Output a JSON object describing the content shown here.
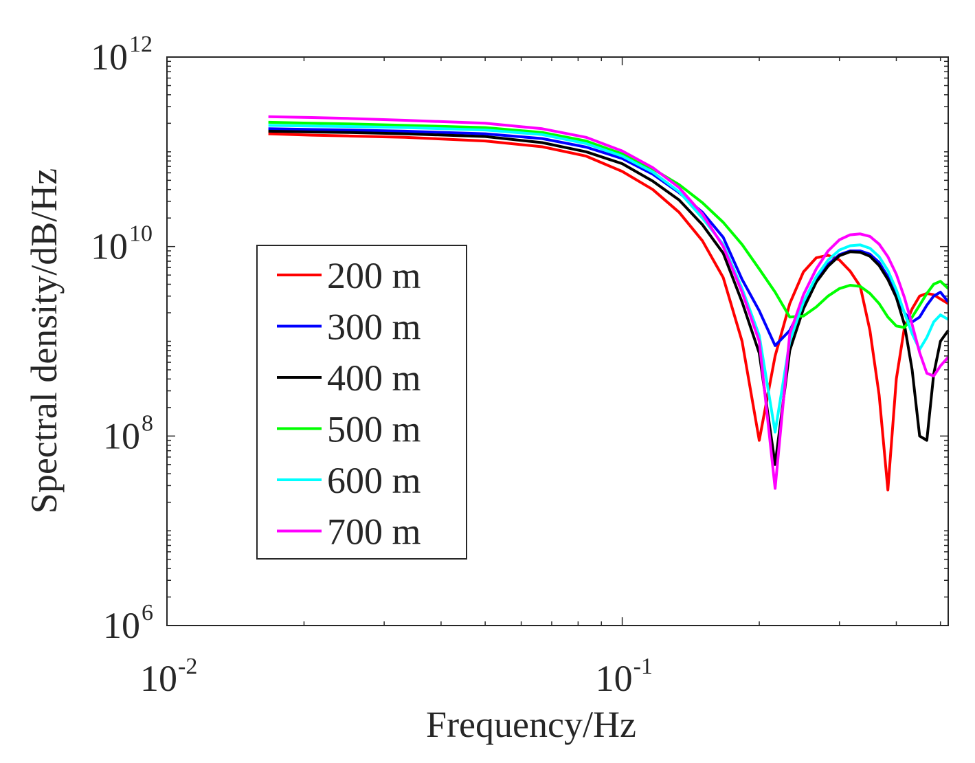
{
  "chart_data": {
    "type": "line",
    "xscale": "log",
    "yscale": "log",
    "xlabel": "Frequency/Hz",
    "ylabel": "Spectral density/dB/Hz",
    "xlim": [
      0.01,
      0.52
    ],
    "ylim": [
      1000000.0,
      1000000000000.0
    ],
    "x_ticks": [
      {
        "value": 0.01,
        "base": "10",
        "exp": "-2"
      },
      {
        "value": 0.1,
        "base": "10",
        "exp": "-1"
      }
    ],
    "y_ticks": [
      {
        "value": 1000000.0,
        "base": "10",
        "exp": "6"
      },
      {
        "value": 100000000.0,
        "base": "10",
        "exp": "8"
      },
      {
        "value": 10000000000.0,
        "base": "10",
        "exp": "10"
      },
      {
        "value": 1000000000000.0,
        "base": "10",
        "exp": "12"
      }
    ],
    "legend_position": "center-left",
    "series": [
      {
        "name": "200 m",
        "color": "#ff0000",
        "x": [
          0.0167,
          0.0208,
          0.025,
          0.0333,
          0.05,
          0.0667,
          0.0833,
          0.1,
          0.1167,
          0.1333,
          0.15,
          0.1667,
          0.1833,
          0.2,
          0.2167,
          0.2333,
          0.25,
          0.2667,
          0.2833,
          0.3,
          0.3167,
          0.3333,
          0.35,
          0.3667,
          0.3833,
          0.4,
          0.4167,
          0.4333,
          0.45,
          0.4667,
          0.4833,
          0.5,
          0.52
        ],
        "y": [
          155000000000.0,
          150000000000.0,
          147000000000.0,
          142000000000.0,
          130000000000.0,
          113000000000.0,
          90000000000.0,
          62000000000.0,
          40000000000.0,
          23000000000.0,
          11500000000.0,
          4700000000.0,
          1000000000.0,
          90000000.0,
          700000000.0,
          2500000000.0,
          5400000000.0,
          7600000000.0,
          8100000000.0,
          7200000000.0,
          5500000000.0,
          3800000000.0,
          1300000000.0,
          270000000.0,
          27000000.0,
          400000000.0,
          1400000000.0,
          2200000000.0,
          3000000000.0,
          3200000000.0,
          3100000000.0,
          2800000000.0,
          2500000000.0
        ]
      },
      {
        "name": "300 m",
        "color": "#0000ff",
        "x": [
          0.0167,
          0.0208,
          0.025,
          0.0333,
          0.05,
          0.0667,
          0.0833,
          0.1,
          0.1167,
          0.1333,
          0.15,
          0.1667,
          0.1833,
          0.2,
          0.2167,
          0.2333,
          0.25,
          0.2667,
          0.2833,
          0.3,
          0.3167,
          0.3333,
          0.35,
          0.3667,
          0.3833,
          0.4,
          0.4167,
          0.4333,
          0.45,
          0.4667,
          0.4833,
          0.5,
          0.52
        ],
        "y": [
          175000000000.0,
          172000000000.0,
          170000000000.0,
          165000000000.0,
          155000000000.0,
          138000000000.0,
          112000000000.0,
          85000000000.0,
          58000000000.0,
          37000000000.0,
          23000000000.0,
          12500000000.0,
          4500000000.0,
          2100000000.0,
          900000000.0,
          1300000000.0,
          2500000000.0,
          4300000000.0,
          6500000000.0,
          8200000000.0,
          9000000000.0,
          9000000000.0,
          8300000000.0,
          6800000000.0,
          4800000000.0,
          3100000000.0,
          2000000000.0,
          1600000000.0,
          1800000000.0,
          2400000000.0,
          3000000000.0,
          3300000000.0,
          2600000000.0
        ]
      },
      {
        "name": "400 m",
        "color": "#000000",
        "x": [
          0.0167,
          0.0208,
          0.025,
          0.0333,
          0.05,
          0.0667,
          0.0833,
          0.1,
          0.1167,
          0.1333,
          0.15,
          0.1667,
          0.1833,
          0.2,
          0.2167,
          0.2333,
          0.25,
          0.2667,
          0.2833,
          0.3,
          0.3167,
          0.3333,
          0.35,
          0.3667,
          0.3833,
          0.4,
          0.4167,
          0.4333,
          0.45,
          0.4667,
          0.4833,
          0.5,
          0.52
        ],
        "y": [
          165000000000.0,
          162000000000.0,
          160000000000.0,
          155000000000.0,
          145000000000.0,
          125000000000.0,
          100000000000.0,
          75000000000.0,
          49000000000.0,
          31000000000.0,
          17000000000.0,
          8500000000.0,
          2600000000.0,
          750000000.0,
          50000000.0,
          800000000.0,
          2200000000.0,
          4200000000.0,
          6200000000.0,
          8000000000.0,
          8800000000.0,
          8700000000.0,
          7900000000.0,
          6300000000.0,
          4500000000.0,
          2900000000.0,
          1500000000.0,
          500000000.0,
          100000000.0,
          90000000.0,
          450000000.0,
          1000000000.0,
          1300000000.0
        ]
      },
      {
        "name": "500 m",
        "color": "#00ff00",
        "x": [
          0.0167,
          0.0208,
          0.025,
          0.0333,
          0.05,
          0.0667,
          0.0833,
          0.1,
          0.1167,
          0.1333,
          0.15,
          0.1667,
          0.1833,
          0.2,
          0.2167,
          0.2333,
          0.25,
          0.2667,
          0.2833,
          0.3,
          0.3167,
          0.3333,
          0.35,
          0.3667,
          0.3833,
          0.4,
          0.4167,
          0.4333,
          0.45,
          0.4667,
          0.4833,
          0.5,
          0.52
        ],
        "y": [
          205000000000.0,
          200000000000.0,
          197000000000.0,
          190000000000.0,
          180000000000.0,
          160000000000.0,
          130000000000.0,
          95000000000.0,
          66000000000.0,
          45000000000.0,
          29000000000.0,
          18000000000.0,
          10500000000.0,
          5800000000.0,
          3300000000.0,
          1800000000.0,
          1850000000.0,
          2300000000.0,
          3000000000.0,
          3600000000.0,
          3900000000.0,
          3800000000.0,
          3200000000.0,
          2500000000.0,
          1800000000.0,
          1450000000.0,
          1400000000.0,
          1800000000.0,
          2400000000.0,
          3200000000.0,
          4000000000.0,
          4300000000.0,
          3600000000.0
        ]
      },
      {
        "name": "600 m",
        "color": "#00ffff",
        "x": [
          0.0167,
          0.0208,
          0.025,
          0.0333,
          0.05,
          0.0667,
          0.0833,
          0.1,
          0.1167,
          0.1333,
          0.15,
          0.1667,
          0.1833,
          0.2,
          0.2167,
          0.2333,
          0.25,
          0.2667,
          0.2833,
          0.3,
          0.3167,
          0.3333,
          0.35,
          0.3667,
          0.3833,
          0.4,
          0.4167,
          0.4333,
          0.45,
          0.4667,
          0.4833,
          0.5,
          0.52
        ],
        "y": [
          190000000000.0,
          187000000000.0,
          185000000000.0,
          180000000000.0,
          170000000000.0,
          152000000000.0,
          122000000000.0,
          90000000000.0,
          61000000000.0,
          38000000000.0,
          20000000000.0,
          10500000000.0,
          3600000000.0,
          1150000000.0,
          110000000.0,
          1000000000.0,
          2600000000.0,
          4800000000.0,
          7200000000.0,
          9200000000.0,
          10200000000.0,
          10400000000.0,
          9600000000.0,
          7800000000.0,
          5600000000.0,
          3500000000.0,
          2000000000.0,
          1200000000.0,
          820000000.0,
          1100000000.0,
          1600000000.0,
          1900000000.0,
          1700000000.0
        ]
      },
      {
        "name": "700 m",
        "color": "#ff00ff",
        "x": [
          0.0167,
          0.0208,
          0.025,
          0.0333,
          0.05,
          0.0667,
          0.0833,
          0.1,
          0.1167,
          0.1333,
          0.15,
          0.1667,
          0.1833,
          0.2,
          0.2167,
          0.2333,
          0.25,
          0.2667,
          0.2833,
          0.3,
          0.3167,
          0.3333,
          0.35,
          0.3667,
          0.3833,
          0.4,
          0.4167,
          0.4333,
          0.45,
          0.4667,
          0.4833,
          0.5,
          0.52
        ],
        "y": [
          235000000000.0,
          230000000000.0,
          225000000000.0,
          215000000000.0,
          200000000000.0,
          175000000000.0,
          142000000000.0,
          102000000000.0,
          68000000000.0,
          42000000000.0,
          22000000000.0,
          10000000000.0,
          3300000000.0,
          1000000000.0,
          28000000.0,
          1200000000.0,
          3100000000.0,
          5800000000.0,
          9000000000.0,
          11800000000.0,
          13300000000.0,
          13600000000.0,
          12800000000.0,
          10600000000.0,
          7800000000.0,
          5100000000.0,
          2900000000.0,
          1500000000.0,
          760000000.0,
          460000000.0,
          430000000.0,
          550000000.0,
          680000000.0
        ]
      }
    ]
  }
}
